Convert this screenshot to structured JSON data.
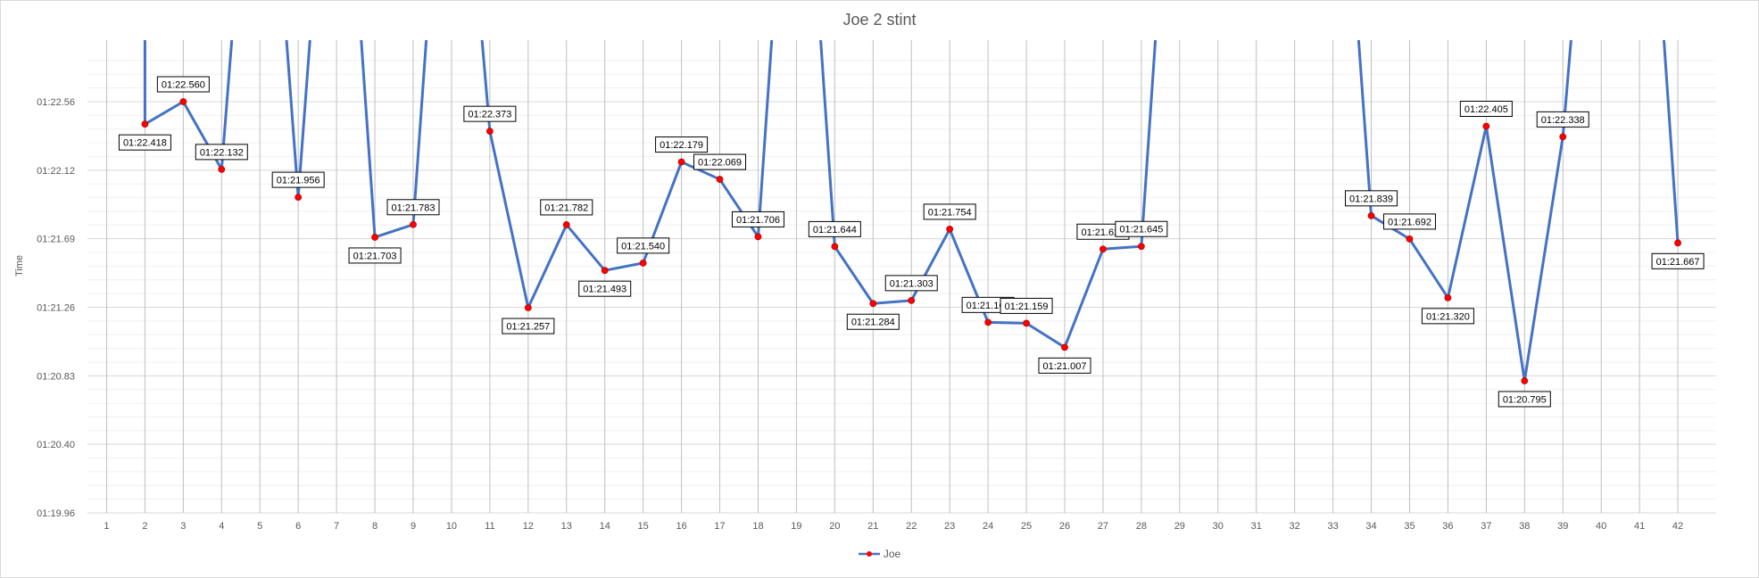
{
  "chart_data": {
    "type": "line",
    "title": "Joe 2 stint",
    "xlabel": "",
    "ylabel": "Time",
    "categories": [
      "1",
      "2",
      "3",
      "4",
      "5",
      "6",
      "7",
      "8",
      "9",
      "10",
      "11",
      "12",
      "13",
      "14",
      "15",
      "16",
      "17",
      "18",
      "19",
      "20",
      "21",
      "22",
      "23",
      "24",
      "25",
      "26",
      "27",
      "28",
      "29",
      "30",
      "31",
      "32",
      "33",
      "34",
      "35",
      "36",
      "37",
      "38",
      "39",
      "40",
      "41",
      "42"
    ],
    "y_ticks": [
      "01:19.96",
      "01:20.40",
      "01:20.83",
      "01:21.26",
      "01:21.69",
      "01:22.12",
      "01:22.56"
    ],
    "ylim": [
      79.96,
      82.9
    ],
    "grid": true,
    "legend_position": "bottom",
    "series": [
      {
        "name": "Joe",
        "color": "#4472C4",
        "marker_color": "#FF0000",
        "points": [
          {
            "x": "2",
            "y": 82.418,
            "label": "01:22.418"
          },
          {
            "x": "3",
            "y": 82.56,
            "label": "01:22.560"
          },
          {
            "x": "4",
            "y": 82.132,
            "label": "01:22.132"
          },
          {
            "x": "6",
            "y": 81.956,
            "label": "01:21.956"
          },
          {
            "x": "8",
            "y": 81.703,
            "label": "01:21.703"
          },
          {
            "x": "9",
            "y": 81.783,
            "label": "01:21.783"
          },
          {
            "x": "11",
            "y": 82.373,
            "label": "01:22.373"
          },
          {
            "x": "12",
            "y": 81.257,
            "label": "01:21.257"
          },
          {
            "x": "13",
            "y": 81.782,
            "label": "01:21.782"
          },
          {
            "x": "14",
            "y": 81.493,
            "label": "01:21.493"
          },
          {
            "x": "15",
            "y": 81.54,
            "label": "01:21.540"
          },
          {
            "x": "16",
            "y": 82.179,
            "label": "01:22.179"
          },
          {
            "x": "17",
            "y": 82.069,
            "label": "01:22.069"
          },
          {
            "x": "18",
            "y": 81.706,
            "label": "01:21.706"
          },
          {
            "x": "20",
            "y": 81.644,
            "label": "01:21.644"
          },
          {
            "x": "21",
            "y": 81.284,
            "label": "01:21.284"
          },
          {
            "x": "22",
            "y": 81.303,
            "label": "01:21.303"
          },
          {
            "x": "23",
            "y": 81.754,
            "label": "01:21.754"
          },
          {
            "x": "24",
            "y": 81.165,
            "label": "01:21.165"
          },
          {
            "x": "25",
            "y": 81.159,
            "label": "01:21.159"
          },
          {
            "x": "26",
            "y": 81.007,
            "label": "01:21.007"
          },
          {
            "x": "27",
            "y": 81.628,
            "label": "01:21.628"
          },
          {
            "x": "28",
            "y": 81.645,
            "label": "01:21.645"
          },
          {
            "x": "34",
            "y": 81.839,
            "label": "01:21.839"
          },
          {
            "x": "35",
            "y": 81.692,
            "label": "01:21.692"
          },
          {
            "x": "36",
            "y": 81.32,
            "label": "01:21.320"
          },
          {
            "x": "37",
            "y": 82.405,
            "label": "01:22.405"
          },
          {
            "x": "38",
            "y": 80.795,
            "label": "01:20.795"
          },
          {
            "x": "39",
            "y": 82.338,
            "label": "01:22.338"
          },
          {
            "x": "42",
            "y": 81.667,
            "label": "01:21.667"
          }
        ]
      }
    ]
  }
}
